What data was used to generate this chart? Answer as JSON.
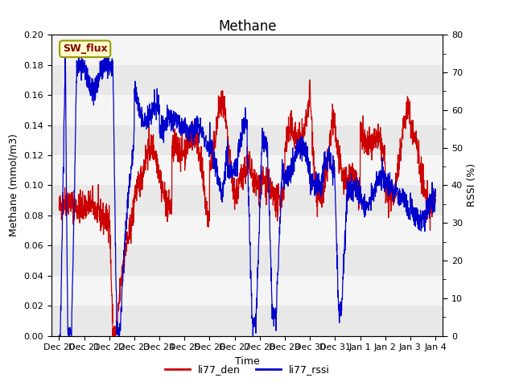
{
  "title": "Methane",
  "ylabel_left": "Methane (mmol/m3)",
  "ylabel_right": "RSSI (%)",
  "xlabel": "Time",
  "ylim_left": [
    0.0,
    0.2
  ],
  "ylim_right": [
    0,
    80
  ],
  "yticks_left": [
    0.0,
    0.02,
    0.04,
    0.06,
    0.08,
    0.1,
    0.12,
    0.14,
    0.16,
    0.18,
    0.2
  ],
  "yticks_right": [
    0,
    10,
    20,
    30,
    40,
    50,
    60,
    70,
    80
  ],
  "legend_labels": [
    "li77_den",
    "li77_rssi"
  ],
  "line_color_red": "#cc0000",
  "line_color_blue": "#0000cc",
  "fig_bg_color": "#ffffff",
  "axes_bg_color": "#e8e8e8",
  "band_color_light": "#e8e8e8",
  "band_color_white": "#f5f5f5",
  "sw_flux_label": "SW_flux",
  "sw_flux_bg": "#ffffcc",
  "sw_flux_border": "#999900",
  "sw_flux_text_color": "#880000",
  "title_fontsize": 12,
  "axis_label_fontsize": 9,
  "tick_fontsize": 8,
  "legend_fontsize": 9,
  "grid_color": "#ffffff",
  "date_labels": [
    "Dec 20",
    "Dec 21",
    "Dec 22",
    "Dec 23",
    "Dec 24",
    "Dec 25",
    "Dec 26",
    "Dec 27",
    "Dec 28",
    "Dec 29",
    "Dec 30",
    "Dec 31",
    "Jan 1",
    "Jan 2",
    "Jan 3",
    "Jan 4"
  ]
}
